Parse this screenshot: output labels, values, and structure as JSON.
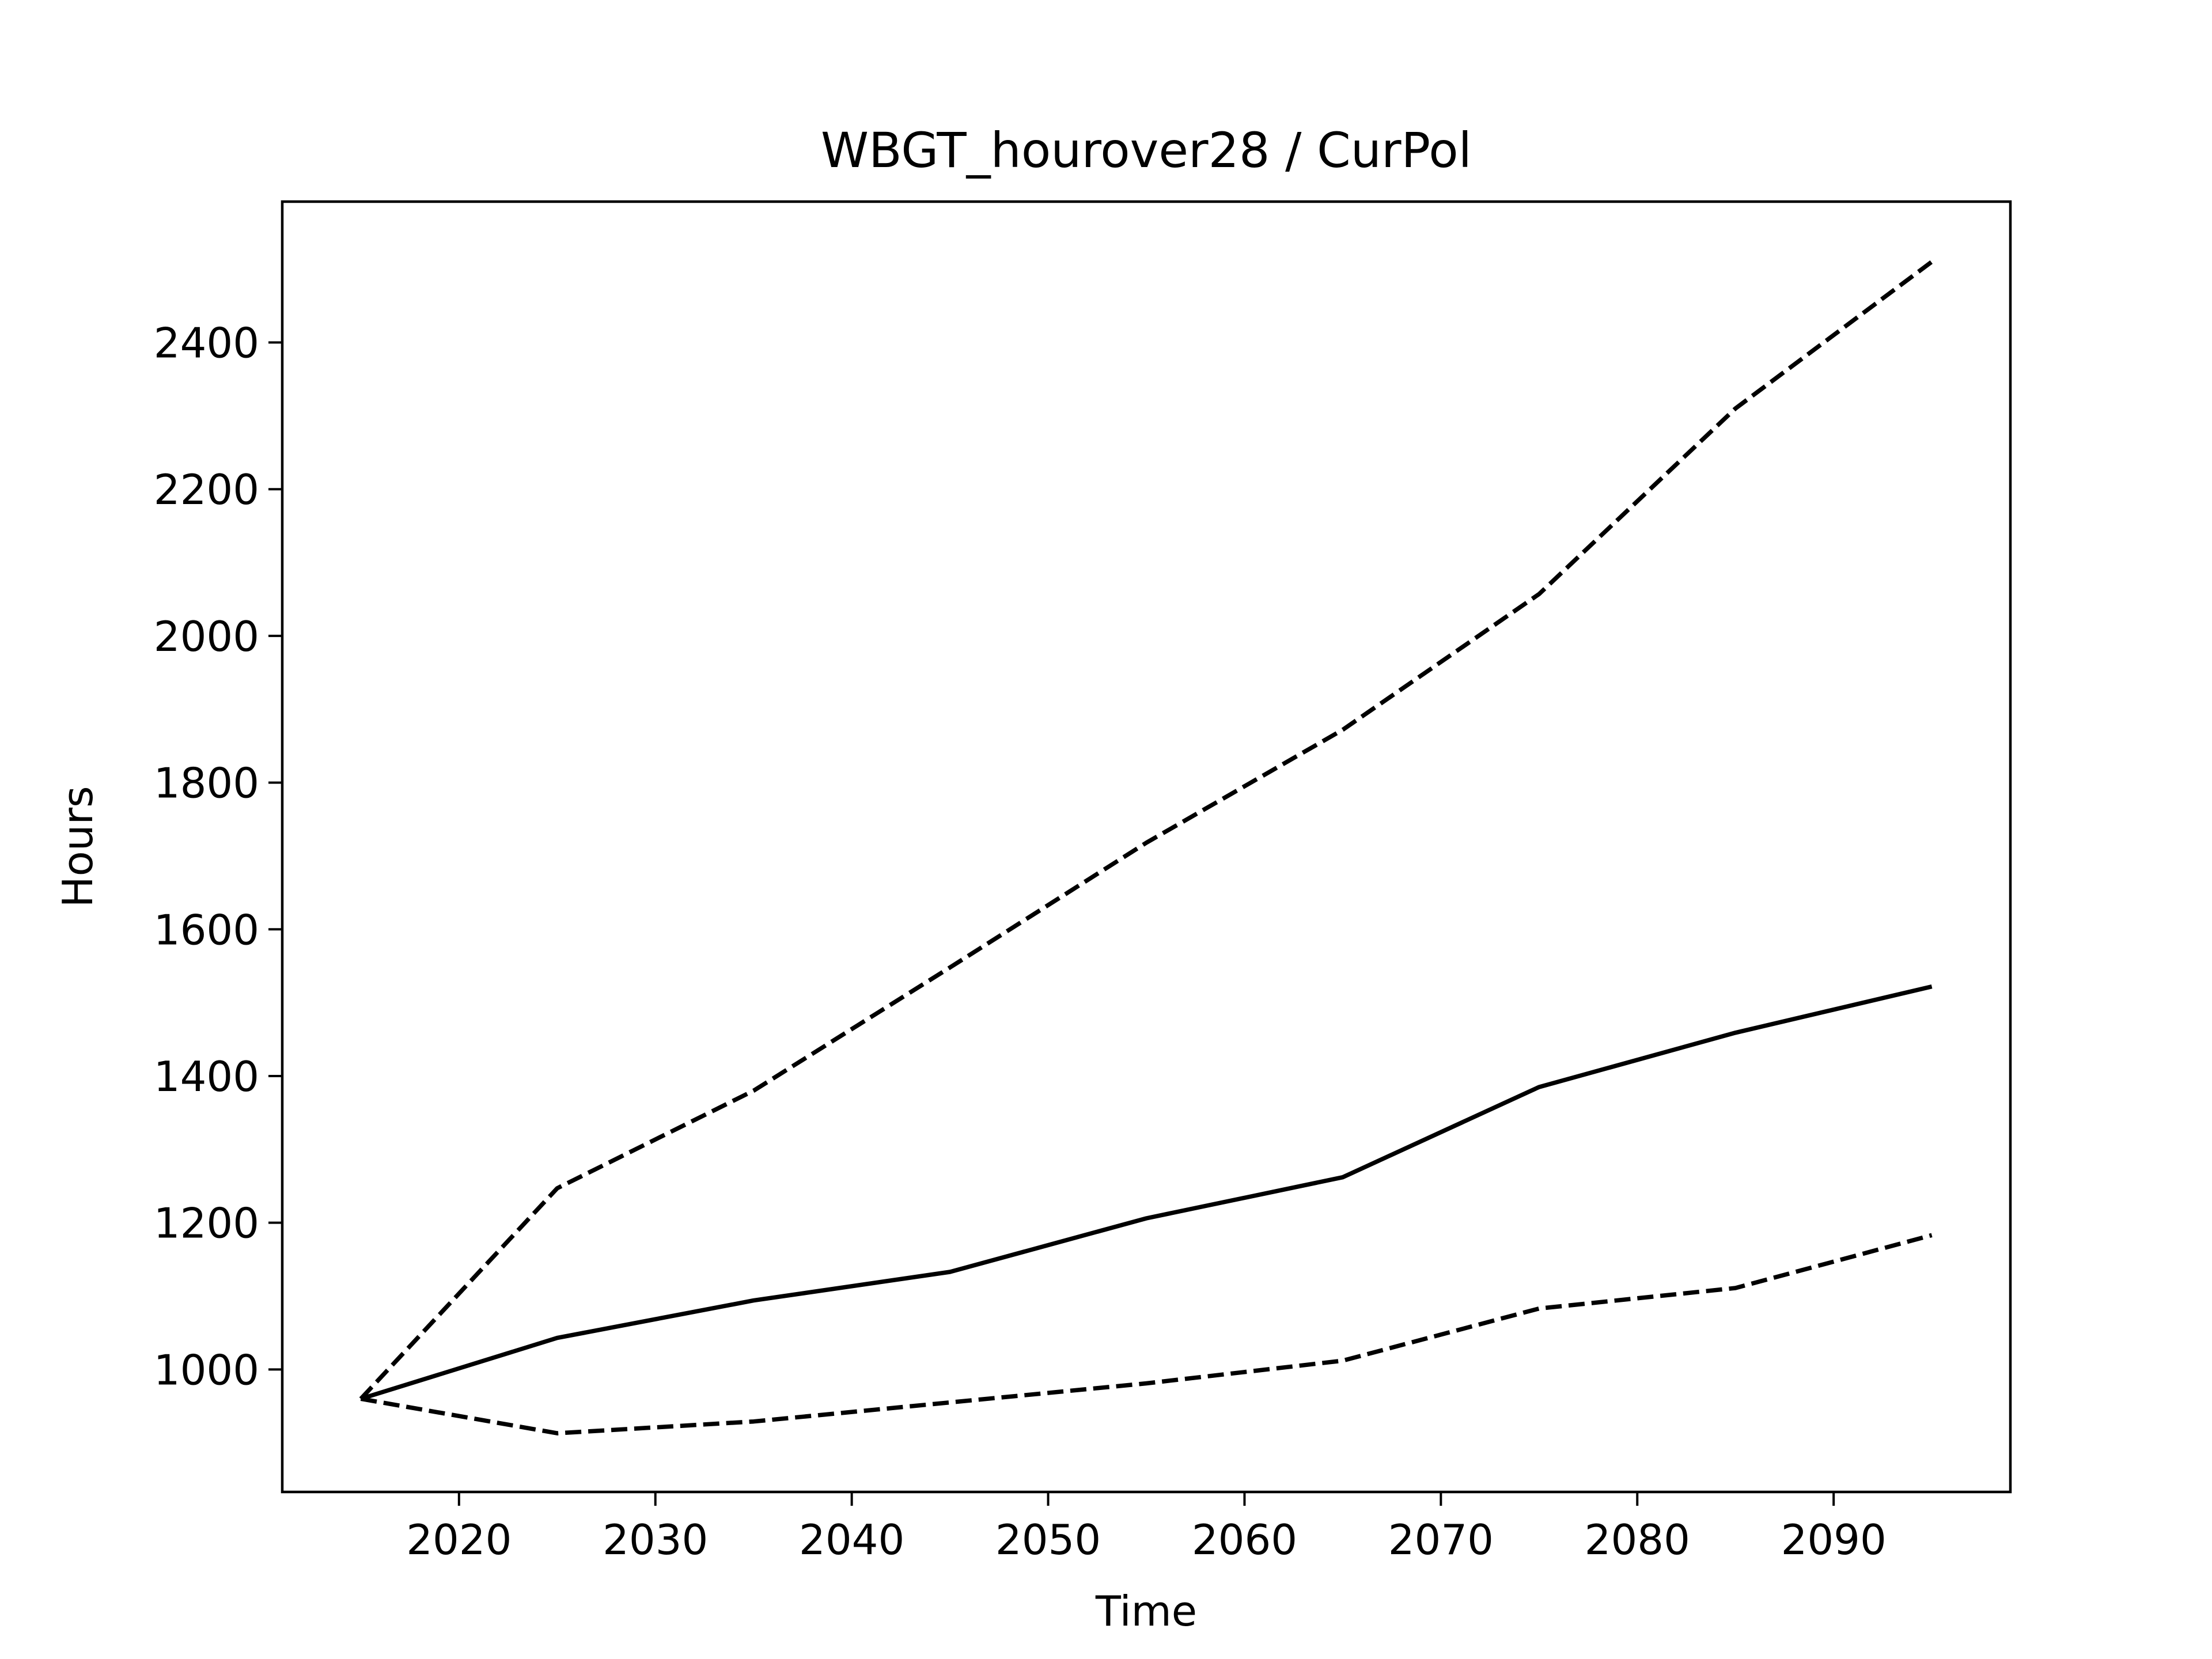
{
  "chart_data": {
    "type": "line",
    "title": "WBGT_hourover28 / CurPol",
    "xlabel": "Time",
    "ylabel": "Hours",
    "xlim": [
      2011,
      2099
    ],
    "ylim": [
      833,
      2592
    ],
    "grid": false,
    "legend": "none",
    "x": [
      2015,
      2025,
      2035,
      2045,
      2055,
      2065,
      2075,
      2085,
      2095
    ],
    "xticks": [
      2020,
      2030,
      2040,
      2050,
      2060,
      2070,
      2080,
      2090
    ],
    "yticks": [
      1000,
      1200,
      1400,
      1600,
      1800,
      2000,
      2200,
      2400
    ],
    "series": [
      {
        "style": "dashed",
        "color": "#000000",
        "values": [
          960,
          1247,
          1380,
          1548,
          1718,
          1872,
          2057,
          2310,
          2510
        ]
      },
      {
        "style": "solid",
        "color": "#000000",
        "values": [
          960,
          1043,
          1094,
          1133,
          1206,
          1262,
          1385,
          1459,
          1522
        ]
      },
      {
        "style": "dashed",
        "color": "#000000",
        "values": [
          960,
          913,
          929,
          955,
          981,
          1012,
          1083,
          1111,
          1183
        ]
      }
    ]
  }
}
